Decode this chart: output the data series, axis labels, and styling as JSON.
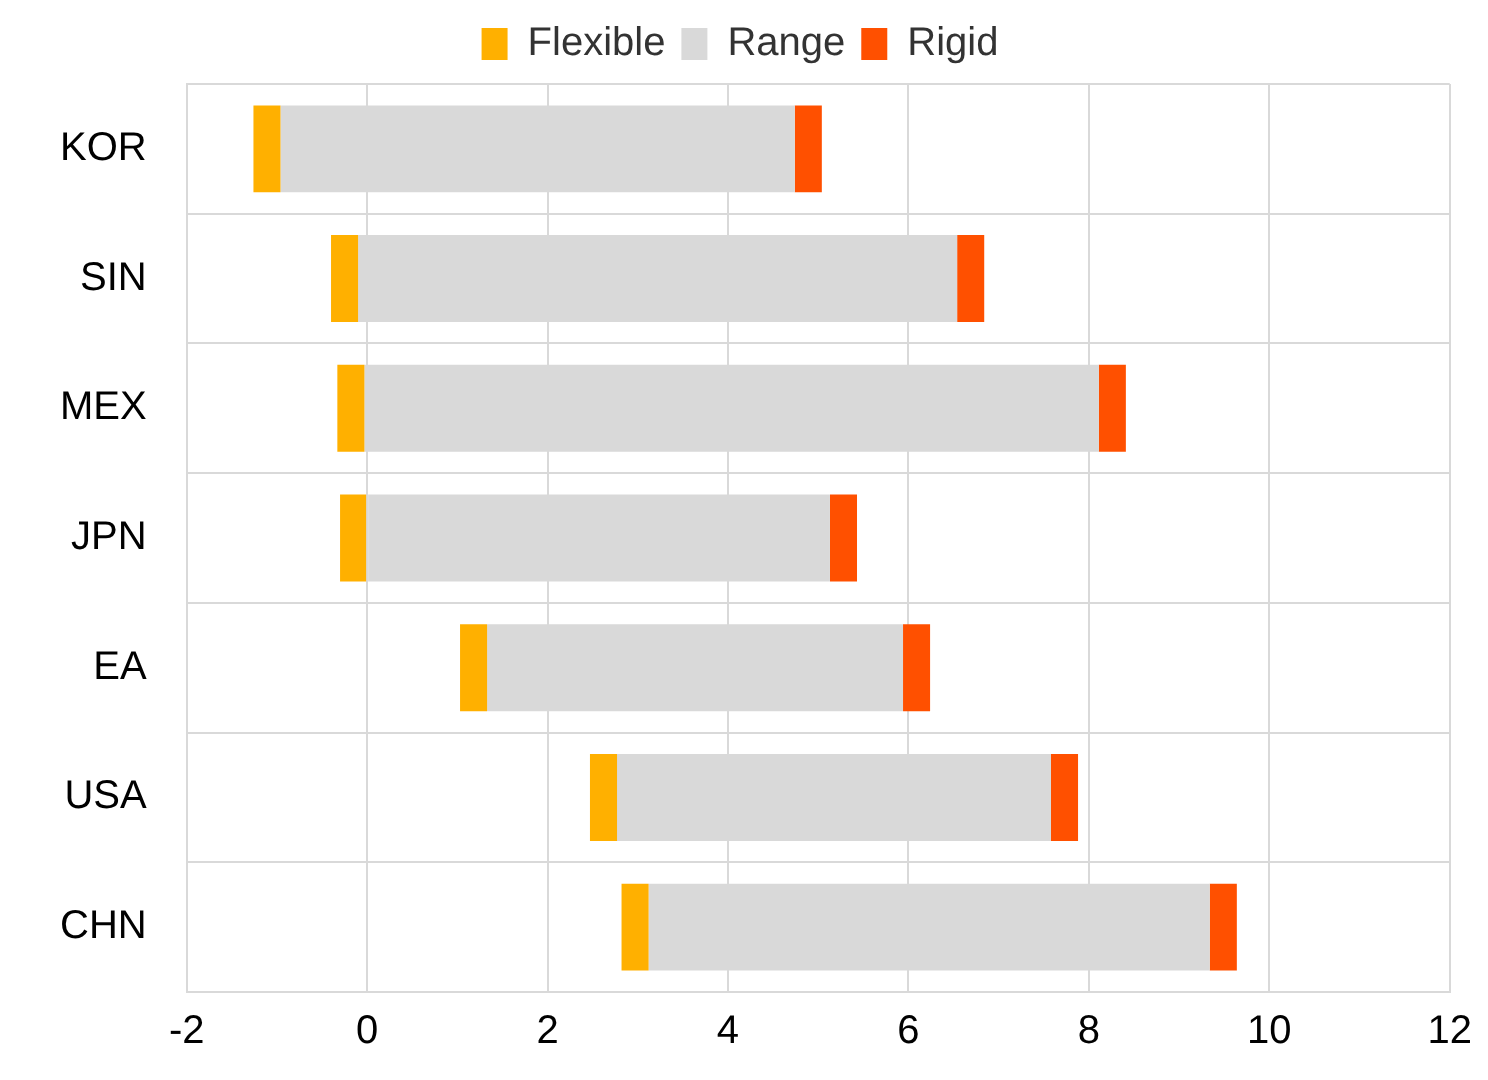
{
  "chart_data": {
    "type": "bar",
    "orientation": "horizontal",
    "categories": [
      "KOR",
      "SIN",
      "MEX",
      "JPN",
      "EA",
      "USA",
      "CHN"
    ],
    "series": [
      {
        "name": "Flexible",
        "color": "#ffb000",
        "base": [
          -1.26,
          -0.4,
          -0.33,
          -0.3,
          1.03,
          2.47,
          2.82
        ],
        "values": [
          0.3,
          0.3,
          0.3,
          0.3,
          0.3,
          0.3,
          0.3
        ]
      },
      {
        "name": "Range",
        "color": "#d9d9d9",
        "base": [
          -0.96,
          -0.1,
          -0.03,
          0,
          1.33,
          2.77,
          3.12
        ],
        "values": [
          5.7,
          6.64,
          8.14,
          5.13,
          4.61,
          4.81,
          6.22
        ]
      },
      {
        "name": "Rigid",
        "color": "#ff5000",
        "base": [
          4.74,
          6.54,
          8.11,
          5.13,
          5.94,
          7.58,
          9.34
        ],
        "values": [
          0.3,
          0.3,
          0.3,
          0.3,
          0.3,
          0.3,
          0.3
        ]
      }
    ],
    "xlim": [
      -2,
      12
    ],
    "xticks": [
      -2,
      0,
      2,
      4,
      6,
      8,
      10,
      12
    ],
    "grid": true,
    "legend": "top"
  }
}
